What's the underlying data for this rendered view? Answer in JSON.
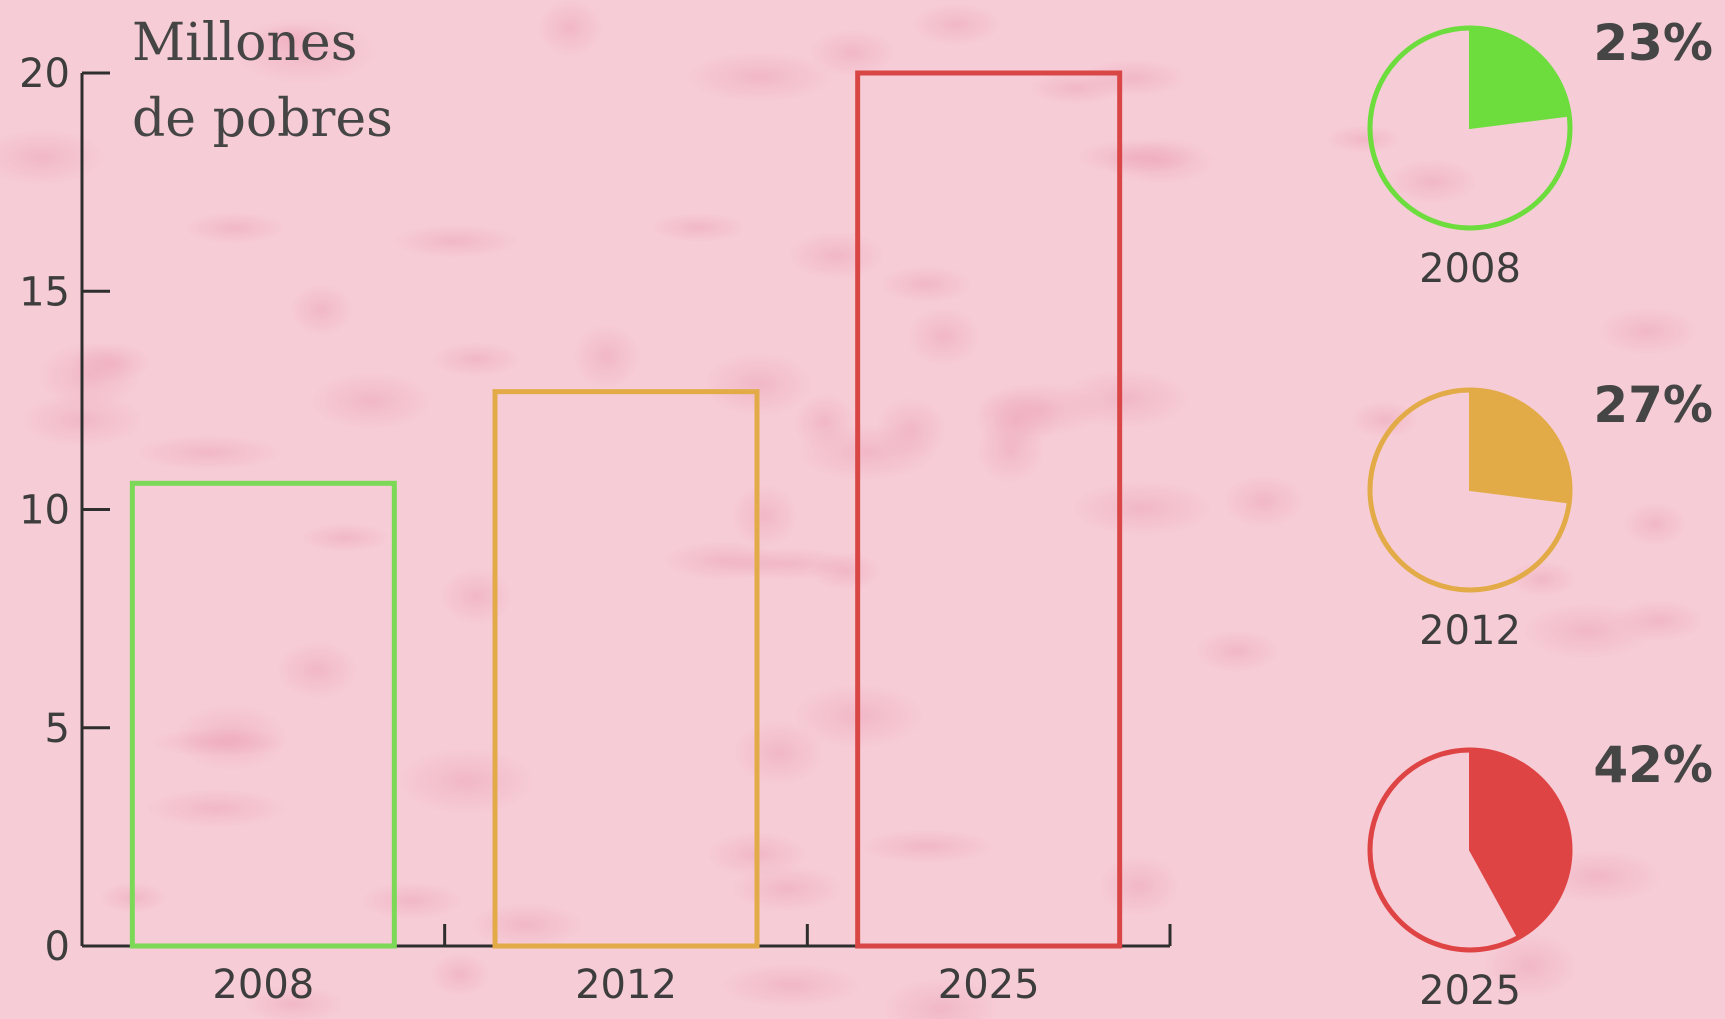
{
  "chart_data": [
    {
      "type": "bar",
      "title_lines": [
        "Millones",
        "de pobres"
      ],
      "categories": [
        "2008",
        "2012",
        "2025"
      ],
      "values": [
        10.6,
        12.7,
        20
      ],
      "ylim": [
        0,
        20
      ],
      "yticks": [
        "0",
        "5",
        "10",
        "15",
        "20"
      ],
      "colors": [
        "#7bd957",
        "#e2ab47",
        "#d94646"
      ],
      "grid": false
    },
    {
      "type": "pie",
      "categories": [
        "2008",
        "2012",
        "2025"
      ],
      "values": [
        23,
        27,
        42
      ],
      "labels": [
        "23%",
        "27%",
        "42%"
      ],
      "colors": [
        "#6ddd3e",
        "#e2ab47",
        "#df4444"
      ]
    }
  ]
}
